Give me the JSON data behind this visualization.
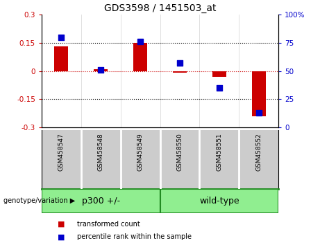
{
  "title": "GDS3598 / 1451503_at",
  "samples": [
    "GSM458547",
    "GSM458548",
    "GSM458549",
    "GSM458550",
    "GSM458551",
    "GSM458552"
  ],
  "transformed_count": [
    0.13,
    0.01,
    0.15,
    -0.01,
    -0.03,
    -0.24
  ],
  "percentile_rank": [
    80,
    51,
    76,
    57,
    35,
    13
  ],
  "groups": [
    {
      "label": "p300 +/-",
      "start": 0,
      "end": 3
    },
    {
      "label": "wild-type",
      "start": 3,
      "end": 6
    }
  ],
  "group_color": "#90ee90",
  "group_border_color": "#228B22",
  "ylim_left": [
    -0.3,
    0.3
  ],
  "ylim_right": [
    0,
    100
  ],
  "yticks_left": [
    -0.3,
    -0.15,
    0,
    0.15,
    0.3
  ],
  "yticks_right": [
    0,
    25,
    50,
    75,
    100
  ],
  "ytick_labels_left": [
    "-0.3",
    "-0.15",
    "0",
    "0.15",
    "0.3"
  ],
  "ytick_labels_right": [
    "0",
    "25",
    "50",
    "75",
    "100%"
  ],
  "bar_color": "#CC0000",
  "dot_color": "#0000CC",
  "bar_width": 0.35,
  "dot_size": 35,
  "hline_color": "#CC0000",
  "dotline_color": "black",
  "bg_color": "white",
  "sample_box_color": "#cccccc",
  "sample_box_border": "white",
  "genotype_label": "genotype/variation",
  "legend_bar_label": "transformed count",
  "legend_dot_label": "percentile rank within the sample"
}
